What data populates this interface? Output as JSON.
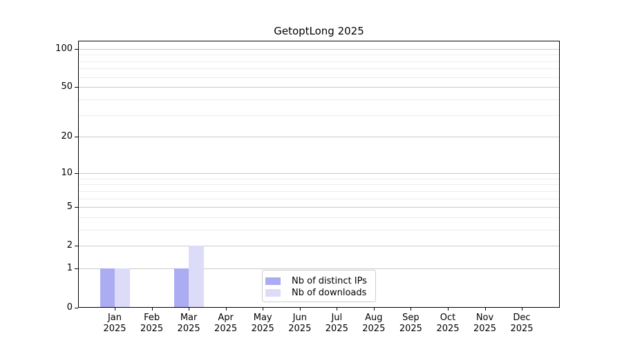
{
  "chart_data": {
    "type": "bar",
    "title": "GetoptLong 2025",
    "categories": [
      {
        "label": "Jan",
        "sublabel": "2025"
      },
      {
        "label": "Feb",
        "sublabel": "2025"
      },
      {
        "label": "Mar",
        "sublabel": "2025"
      },
      {
        "label": "Apr",
        "sublabel": "2025"
      },
      {
        "label": "May",
        "sublabel": "2025"
      },
      {
        "label": "Jun",
        "sublabel": "2025"
      },
      {
        "label": "Jul",
        "sublabel": "2025"
      },
      {
        "label": "Aug",
        "sublabel": "2025"
      },
      {
        "label": "Sep",
        "sublabel": "2025"
      },
      {
        "label": "Oct",
        "sublabel": "2025"
      },
      {
        "label": "Nov",
        "sublabel": "2025"
      },
      {
        "label": "Dec",
        "sublabel": "2025"
      }
    ],
    "series": [
      {
        "name": "Nb of distinct IPs",
        "color": "#acacf2",
        "values": [
          1,
          0,
          1,
          0,
          0,
          0,
          0,
          0,
          0,
          0,
          0,
          0
        ]
      },
      {
        "name": "Nb of downloads",
        "color": "#dcdcf8",
        "values": [
          1,
          0,
          2,
          0,
          0,
          0,
          0,
          0,
          0,
          0,
          0,
          0
        ]
      }
    ],
    "y_axis": {
      "scale": "log10(1+x)",
      "major_ticks": [
        0,
        1,
        2,
        5,
        10,
        20,
        50,
        100
      ],
      "minor_ticks": [
        3,
        4,
        6,
        7,
        8,
        9,
        30,
        40,
        60,
        70,
        80,
        90
      ],
      "ylim_top_approx": 116
    },
    "grid": true,
    "legend_position": "bottom-center-inside"
  },
  "colors": {
    "axis": "#000000",
    "major_grid": "#c9c9c9",
    "minor_grid": "#ececec",
    "legend_border": "#cccccc",
    "background": "#ffffff"
  }
}
